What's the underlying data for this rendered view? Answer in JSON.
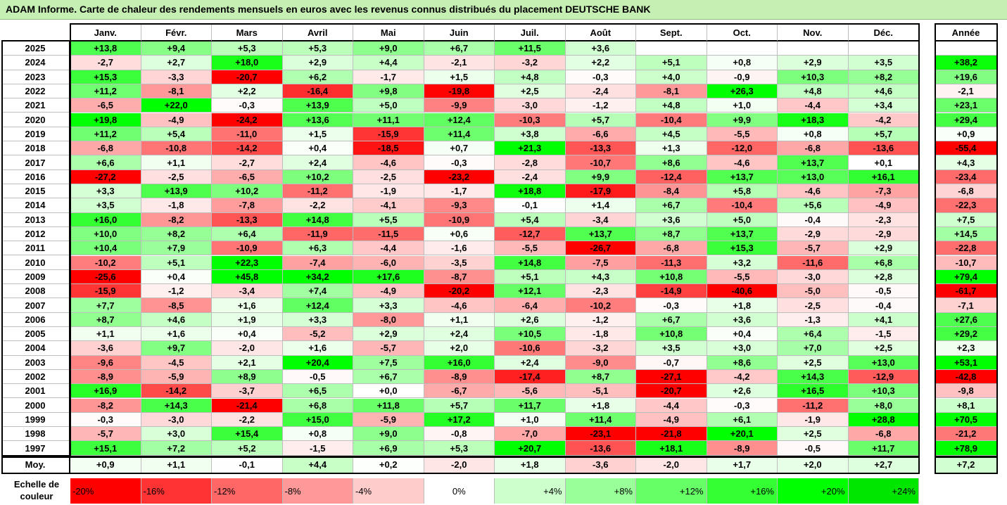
{
  "title": "ADAM Informe. Carte de chaleur des rendements mensuels en euros avec les revenus connus distribués du placement DEUTSCHE BANK",
  "chart_data": {
    "type": "heatmap",
    "columns": [
      "Janv.",
      "Févr.",
      "Mars",
      "Avril",
      "Mai",
      "Juin",
      "Juil.",
      "Août",
      "Sept.",
      "Oct.",
      "Nov.",
      "Déc."
    ],
    "year_column": "Année",
    "rows": [
      {
        "year": "2025",
        "months": [
          "+13,8",
          "+9,4",
          "+5,3",
          "+5,3",
          "+9,0",
          "+6,7",
          "+11,5",
          "+3,6",
          "",
          "",
          "",
          ""
        ],
        "annual": ""
      },
      {
        "year": "2024",
        "months": [
          "-2,7",
          "+2,7",
          "+18,0",
          "+2,9",
          "+4,4",
          "-2,1",
          "-3,2",
          "+2,2",
          "+5,1",
          "+0,8",
          "+2,9",
          "+3,5"
        ],
        "annual": "+38,2"
      },
      {
        "year": "2023",
        "months": [
          "+15,3",
          "-3,3",
          "-20,7",
          "+6,2",
          "-1,7",
          "+1,5",
          "+4,8",
          "-0,3",
          "+4,0",
          "-0,9",
          "+10,3",
          "+8,2"
        ],
        "annual": "+19,6"
      },
      {
        "year": "2022",
        "months": [
          "+11,2",
          "-8,1",
          "+2,2",
          "-16,4",
          "+9,8",
          "-19,8",
          "+2,5",
          "-2,4",
          "-8,1",
          "+26,3",
          "+4,8",
          "+4,6"
        ],
        "annual": "-2,1"
      },
      {
        "year": "2021",
        "months": [
          "-6,5",
          "+22,0",
          "-0,3",
          "+13,9",
          "+5,0",
          "-9,9",
          "-3,0",
          "-1,2",
          "+4,8",
          "+1,0",
          "-4,4",
          "+3,4"
        ],
        "annual": "+23,1"
      },
      {
        "year": "2020",
        "months": [
          "+19,8",
          "-4,9",
          "-24,2",
          "+13,6",
          "+11,1",
          "+12,4",
          "-10,3",
          "+5,7",
          "-10,4",
          "+9,9",
          "+18,3",
          "-4,2"
        ],
        "annual": "+29,4"
      },
      {
        "year": "2019",
        "months": [
          "+11,2",
          "+5,4",
          "-11,0",
          "+1,5",
          "-15,9",
          "+11,4",
          "+3,8",
          "-6,6",
          "+4,5",
          "-5,5",
          "+0,8",
          "+5,7"
        ],
        "annual": "+0,9"
      },
      {
        "year": "2018",
        "months": [
          "-6,8",
          "-10,8",
          "-14,2",
          "+0,4",
          "-18,5",
          "+0,7",
          "+21,3",
          "-13,3",
          "+1,3",
          "-12,0",
          "-6,8",
          "-13,6"
        ],
        "annual": "-55,4"
      },
      {
        "year": "2017",
        "months": [
          "+6,6",
          "+1,1",
          "-2,7",
          "+2,4",
          "-4,6",
          "-0,3",
          "-2,8",
          "-10,7",
          "+8,6",
          "-4,6",
          "+13,7",
          "+0,1"
        ],
        "annual": "+4,3"
      },
      {
        "year": "2016",
        "months": [
          "-27,2",
          "-2,5",
          "-6,5",
          "+10,2",
          "-2,5",
          "-23,2",
          "-2,4",
          "+9,9",
          "-12,4",
          "+13,7",
          "+13,0",
          "+16,1"
        ],
        "annual": "-23,4"
      },
      {
        "year": "2015",
        "months": [
          "+3,3",
          "+13,9",
          "+10,2",
          "-11,2",
          "-1,9",
          "-1,7",
          "+18,8",
          "-17,9",
          "-8,4",
          "+5,8",
          "-4,6",
          "-7,3"
        ],
        "annual": "-6,8"
      },
      {
        "year": "2014",
        "months": [
          "+3,5",
          "-1,8",
          "-7,8",
          "-2,2",
          "-4,1",
          "-9,3",
          "-0,1",
          "+1,4",
          "+6,7",
          "-10,4",
          "+5,6",
          "-4,9"
        ],
        "annual": "-22,3"
      },
      {
        "year": "2013",
        "months": [
          "+16,0",
          "-8,2",
          "-13,3",
          "+14,8",
          "+5,5",
          "-10,9",
          "+5,4",
          "-3,4",
          "+3,6",
          "+5,0",
          "-0,4",
          "-2,3"
        ],
        "annual": "+7,5"
      },
      {
        "year": "2012",
        "months": [
          "+10,0",
          "+8,2",
          "+6,4",
          "-11,9",
          "-11,5",
          "+0,6",
          "-12,7",
          "+13,7",
          "+8,7",
          "+13,7",
          "-2,9",
          "-2,9"
        ],
        "annual": "+14,5"
      },
      {
        "year": "2011",
        "months": [
          "+10,4",
          "+7,9",
          "-10,9",
          "+6,3",
          "-4,4",
          "-1,6",
          "-5,5",
          "-26,7",
          "-6,8",
          "+15,3",
          "-5,7",
          "+2,9"
        ],
        "annual": "-22,8"
      },
      {
        "year": "2010",
        "months": [
          "-10,2",
          "+5,1",
          "+22,3",
          "-7,4",
          "-6,0",
          "-3,5",
          "+14,8",
          "-7,5",
          "-11,3",
          "+3,2",
          "-11,6",
          "+6,8"
        ],
        "annual": "-10,7"
      },
      {
        "year": "2009",
        "months": [
          "-25,6",
          "+0,4",
          "+45,8",
          "+34,2",
          "+17,6",
          "-8,7",
          "+5,1",
          "+4,3",
          "+10,8",
          "-5,5",
          "-3,0",
          "+2,8"
        ],
        "annual": "+79,4"
      },
      {
        "year": "2008",
        "months": [
          "-15,9",
          "-1,2",
          "-3,4",
          "+7,4",
          "-4,9",
          "-20,2",
          "+12,1",
          "-2,3",
          "-14,9",
          "-40,6",
          "-5,0",
          "-0,5"
        ],
        "annual": "-61,7"
      },
      {
        "year": "2007",
        "months": [
          "+7,7",
          "-8,5",
          "+1,6",
          "+12,4",
          "+3,3",
          "-4,6",
          "-6,4",
          "-10,2",
          "-0,3",
          "+1,8",
          "-2,5",
          "-0,4"
        ],
        "annual": "-7,1"
      },
      {
        "year": "2006",
        "months": [
          "+8,7",
          "+4,6",
          "+1,9",
          "+3,3",
          "-8,0",
          "+1,1",
          "+2,6",
          "-1,2",
          "+6,7",
          "+3,6",
          "-1,3",
          "+4,1"
        ],
        "annual": "+27,6"
      },
      {
        "year": "2005",
        "months": [
          "+1,1",
          "+1,6",
          "+0,4",
          "-5,2",
          "+2,9",
          "+2,4",
          "+10,5",
          "-1,8",
          "+10,8",
          "+0,4",
          "+6,4",
          "-1,5"
        ],
        "annual": "+29,2"
      },
      {
        "year": "2004",
        "months": [
          "-3,6",
          "+9,7",
          "-2,0",
          "+1,6",
          "-5,7",
          "+2,0",
          "-10,6",
          "-3,2",
          "+3,5",
          "+3,0",
          "+7,0",
          "+2,5"
        ],
        "annual": "+2,3"
      },
      {
        "year": "2003",
        "months": [
          "-9,6",
          "-4,5",
          "+2,1",
          "+20,4",
          "+7,5",
          "+16,0",
          "+2,4",
          "-9,0",
          "-0,7",
          "+8,6",
          "+2,5",
          "+13,0"
        ],
        "annual": "+53,1"
      },
      {
        "year": "2002",
        "months": [
          "-8,9",
          "-5,9",
          "+8,9",
          "-0,5",
          "+6,7",
          "-8,9",
          "-17,4",
          "+8,7",
          "-27,1",
          "-4,2",
          "+14,3",
          "-12,9"
        ],
        "annual": "-42,8"
      },
      {
        "year": "2001",
        "months": [
          "+16,9",
          "-14,2",
          "-3,7",
          "+6,5",
          "+0,0",
          "-6,7",
          "-5,6",
          "-5,1",
          "-20,7",
          "+2,6",
          "+16,5",
          "+10,3"
        ],
        "annual": "-9,8"
      },
      {
        "year": "2000",
        "months": [
          "-8,2",
          "+14,3",
          "-21,4",
          "+6,8",
          "+11,8",
          "+5,7",
          "+11,7",
          "+1,8",
          "-4,4",
          "-0,3",
          "-11,2",
          "+8,0"
        ],
        "annual": "+8,1"
      },
      {
        "year": "1999",
        "months": [
          "-0,3",
          "-3,0",
          "-2,2",
          "+15,0",
          "-5,9",
          "+17,2",
          "+1,0",
          "+11,4",
          "-4,9",
          "+6,1",
          "-1,9",
          "+28,8"
        ],
        "annual": "+70,5"
      },
      {
        "year": "1998",
        "months": [
          "-5,7",
          "+3,0",
          "+15,4",
          "+0,8",
          "+9,0",
          "-0,8",
          "-7,0",
          "-23,1",
          "-21,8",
          "+20,1",
          "+2,5",
          "-6,8"
        ],
        "annual": "-21,2"
      },
      {
        "year": "1997",
        "months": [
          "+15,1",
          "+7,2",
          "+5,2",
          "-1,5",
          "+6,9",
          "+5,3",
          "+20,7",
          "-13,6",
          "+18,1",
          "-8,9",
          "-0,5",
          "+11,7"
        ],
        "annual": "+78,9"
      }
    ],
    "average": {
      "label": "Moy.",
      "months": [
        "+0,9",
        "+1,1",
        "-0,1",
        "+4,4",
        "+0,2",
        "-2,0",
        "+1,8",
        "-3,6",
        "-2,0",
        "+1,7",
        "+2,0",
        "+2,7"
      ],
      "annual": "+7,2"
    },
    "color_scale": {
      "label": "Echelle de couleur",
      "steps": [
        {
          "text": "-20%",
          "value": -20,
          "color": "#ff0000"
        },
        {
          "text": "-16%",
          "value": -16,
          "color": "#ff3333"
        },
        {
          "text": "-12%",
          "value": -12,
          "color": "#ff6666"
        },
        {
          "text": "-8%",
          "value": -8,
          "color": "#ff9999"
        },
        {
          "text": "-4%",
          "value": -4,
          "color": "#ffcccc"
        },
        {
          "text": "0%",
          "value": 0,
          "color": "#ffffff"
        },
        {
          "text": "+4%",
          "value": 4,
          "color": "#ccffcc"
        },
        {
          "text": "+8%",
          "value": 8,
          "color": "#99ff99"
        },
        {
          "text": "+12%",
          "value": 12,
          "color": "#66ff66"
        },
        {
          "text": "+16%",
          "value": 16,
          "color": "#33ff33"
        },
        {
          "text": "+20%",
          "value": 20,
          "color": "#00ff00"
        },
        {
          "text": "+24%",
          "value": 24,
          "color": "#00e600"
        }
      ]
    }
  }
}
